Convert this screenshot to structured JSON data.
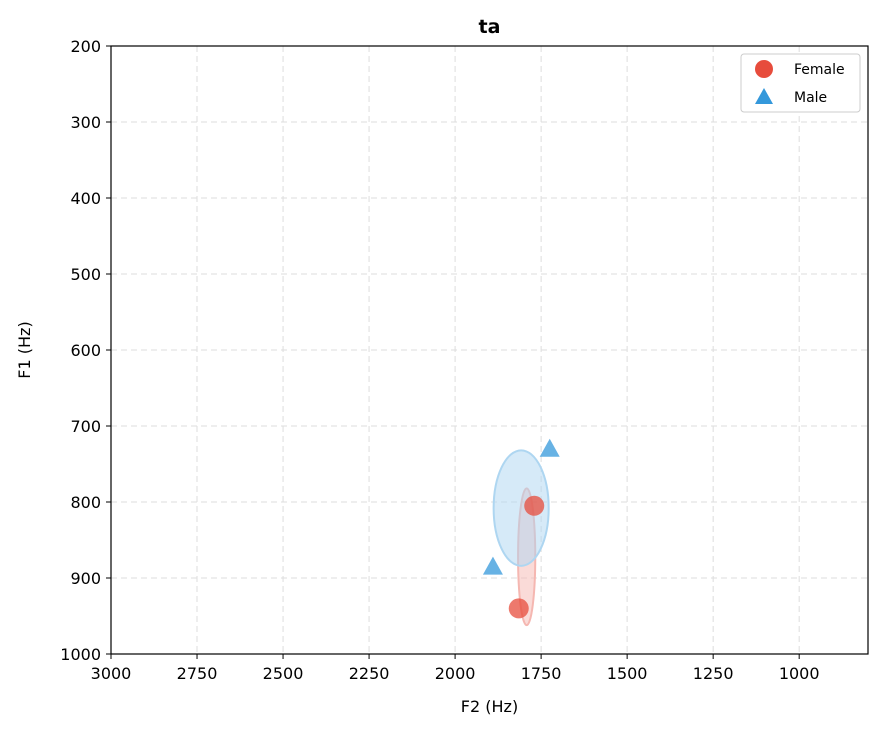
{
  "chart_data": {
    "type": "scatter",
    "title": "ta",
    "xlabel": "F2 (Hz)",
    "ylabel": "F1 (Hz)",
    "xlim": [
      3000,
      800
    ],
    "ylim": [
      1000,
      200
    ],
    "x_inverted": true,
    "y_inverted": true,
    "x_ticks": [
      3000,
      2750,
      2500,
      2250,
      2000,
      1750,
      1500,
      1250,
      1000
    ],
    "y_ticks": [
      200,
      300,
      400,
      500,
      600,
      700,
      800,
      900,
      1000
    ],
    "grid": true,
    "legend_position": "top-right",
    "series": [
      {
        "name": "Female",
        "marker": "circle",
        "color": "#e74c3c",
        "points": [
          {
            "x": 1815,
            "y": 940
          },
          {
            "x": 1770,
            "y": 805
          }
        ],
        "ellipse": {
          "cx": 1792,
          "cy": 872,
          "rx": 25,
          "ry": 90,
          "color": "#f5b7b1"
        }
      },
      {
        "name": "Male",
        "marker": "triangle",
        "color": "#3498db",
        "points": [
          {
            "x": 1890,
            "y": 885
          },
          {
            "x": 1725,
            "y": 730
          }
        ],
        "ellipse": {
          "cx": 1808,
          "cy": 808,
          "rx": 80,
          "ry": 76,
          "color": "#aed6f1"
        }
      }
    ]
  }
}
